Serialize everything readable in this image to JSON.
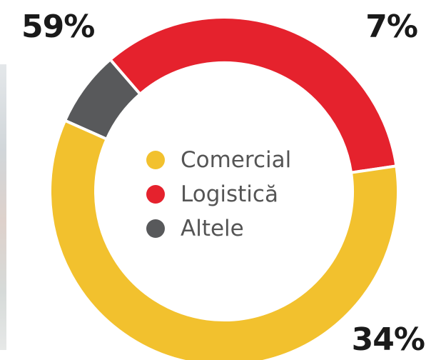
{
  "chart_data": {
    "type": "pie",
    "donut": true,
    "categories": [
      "Comercial",
      "Logistică",
      "Altele"
    ],
    "values": [
      59,
      34,
      7
    ],
    "value_labels": [
      "59%",
      "34%",
      "7%"
    ],
    "colors": [
      "#F2C12E",
      "#E5222D",
      "#58595B"
    ],
    "legend_position": "center",
    "title": ""
  }
}
